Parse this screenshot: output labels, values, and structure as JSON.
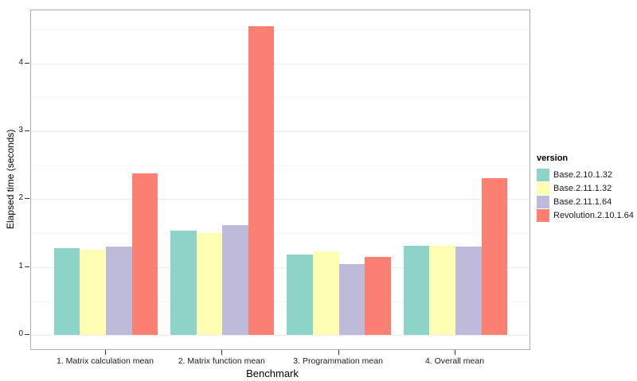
{
  "figure": {
    "background": "#ffffff",
    "panel_border_color": "#adadad",
    "grid_major_color": "#ececec",
    "grid_minor_color": "#f6f6f6",
    "tick_color": "#333333",
    "text_color": "#1a1a1a"
  },
  "chart_data": {
    "type": "bar",
    "title": "",
    "xlabel": "Benchmark",
    "ylabel": "Elapsed time (seconds)",
    "categories": [
      "1. Matrix calculation mean",
      "2. Matrix function mean",
      "3. Programmation mean",
      "4. Overall mean"
    ],
    "series": [
      {
        "name": "Base.2.10.1.32",
        "color": "#8DD3C7",
        "values": [
          1.28,
          1.54,
          1.19,
          1.32
        ]
      },
      {
        "name": "Base.2.11.1.32",
        "color": "#FFFFB3",
        "values": [
          1.26,
          1.5,
          1.23,
          1.31
        ]
      },
      {
        "name": "Base.2.11.1.64",
        "color": "#BEBADA",
        "values": [
          1.3,
          1.62,
          1.05,
          1.3
        ]
      },
      {
        "name": "Revolution.2.10.1.64",
        "color": "#FB8072",
        "values": [
          2.38,
          4.55,
          1.15,
          2.31
        ]
      }
    ],
    "ylim": [
      -0.23,
      4.78
    ],
    "yticks": [
      0,
      1,
      2,
      3,
      4
    ],
    "minor_tick_step": 0.5,
    "grid": true,
    "legend": {
      "title": "version",
      "position": "right"
    }
  }
}
